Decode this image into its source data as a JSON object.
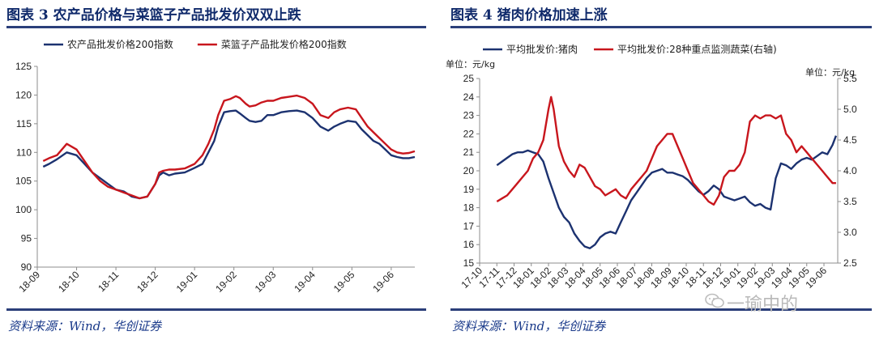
{
  "left": {
    "title": "图表 3   农产品价格与菜篮子产品批发价双双止跌",
    "source": "资料来源：Wind，华创证券"
  },
  "right": {
    "title": "图表 4   猪肉价格加速上涨",
    "source": "资料来源：Wind，华创证券"
  },
  "watermark": "一瑜中的",
  "colors": {
    "navy": "#1c3270",
    "red": "#c8161d",
    "axis": "#8c8c8c",
    "rule": "#2b3f7a"
  },
  "chart_data": [
    {
      "type": "line",
      "title": "农产品价格与菜篮子产品批发价双双止跌",
      "ylim": [
        90,
        125
      ],
      "yticks": [
        90,
        95,
        100,
        105,
        110,
        115,
        120,
        125
      ],
      "xticks": [
        "18-09",
        "18-10",
        "18-11",
        "18-12",
        "19-01",
        "19-02",
        "19-03",
        "19-04",
        "19-05",
        "19-06"
      ],
      "xrange": [
        0,
        9.6
      ],
      "legend_position": "top",
      "series": [
        {
          "name": "农产品批发价格200指数",
          "color": "#1c3270",
          "x": [
            0.15,
            0.3,
            0.5,
            0.75,
            1.0,
            1.2,
            1.4,
            1.6,
            1.8,
            2.0,
            2.2,
            2.4,
            2.6,
            2.8,
            3.0,
            3.1,
            3.2,
            3.35,
            3.5,
            3.75,
            4.0,
            4.2,
            4.35,
            4.5,
            4.6,
            4.75,
            4.9,
            5.05,
            5.15,
            5.3,
            5.4,
            5.55,
            5.7,
            5.85,
            6.0,
            6.2,
            6.4,
            6.6,
            6.8,
            7.0,
            7.2,
            7.4,
            7.55,
            7.7,
            7.9,
            8.1,
            8.25,
            8.4,
            8.55,
            8.7,
            8.85,
            9.0,
            9.15,
            9.3,
            9.45,
            9.6
          ],
          "y": [
            107.5,
            108.0,
            108.8,
            110.0,
            109.5,
            108.0,
            106.5,
            105.5,
            104.5,
            103.5,
            103.2,
            102.3,
            102.0,
            102.3,
            104.5,
            106.0,
            106.5,
            106.0,
            106.3,
            106.5,
            107.3,
            108.0,
            110.0,
            112.0,
            114.5,
            117.0,
            117.2,
            117.3,
            116.8,
            116.0,
            115.5,
            115.3,
            115.5,
            116.5,
            116.5,
            117.0,
            117.2,
            117.3,
            117.0,
            116.0,
            114.5,
            113.8,
            114.5,
            115.0,
            115.5,
            115.3,
            114.0,
            113.0,
            112.0,
            111.5,
            110.5,
            109.5,
            109.2,
            109.0,
            109.0,
            109.2
          ]
        },
        {
          "name": "菜篮子产品批发价格200指数",
          "color": "#c8161d",
          "x": [
            0.15,
            0.3,
            0.5,
            0.75,
            1.0,
            1.2,
            1.4,
            1.6,
            1.8,
            2.0,
            2.2,
            2.4,
            2.6,
            2.8,
            3.0,
            3.1,
            3.2,
            3.35,
            3.5,
            3.75,
            4.0,
            4.2,
            4.35,
            4.5,
            4.6,
            4.75,
            4.9,
            5.05,
            5.15,
            5.3,
            5.4,
            5.55,
            5.7,
            5.85,
            6.0,
            6.2,
            6.4,
            6.6,
            6.8,
            7.0,
            7.2,
            7.4,
            7.55,
            7.7,
            7.9,
            8.1,
            8.25,
            8.4,
            8.55,
            8.7,
            8.85,
            9.0,
            9.15,
            9.3,
            9.45,
            9.6
          ],
          "y": [
            108.5,
            109.0,
            109.5,
            111.5,
            110.5,
            108.5,
            106.5,
            105.0,
            104.0,
            103.5,
            103.0,
            102.5,
            102.0,
            102.3,
            104.5,
            106.5,
            106.8,
            107.0,
            107.0,
            107.2,
            108.0,
            109.5,
            111.5,
            114.0,
            116.5,
            119.0,
            119.3,
            119.8,
            119.5,
            118.5,
            118.0,
            118.2,
            118.7,
            119.0,
            119.0,
            119.5,
            119.7,
            119.9,
            119.5,
            118.5,
            116.5,
            116.0,
            117.0,
            117.5,
            117.8,
            117.5,
            116.0,
            114.5,
            113.5,
            112.5,
            111.5,
            110.5,
            110.0,
            109.8,
            109.9,
            110.2
          ]
        }
      ]
    },
    {
      "type": "line",
      "title": "猪肉价格加速上涨",
      "ylabel": "单位：元/kg",
      "ylabel_right": "单位：元/kg",
      "ylim": [
        15,
        25
      ],
      "ylim_right": [
        2.5,
        5.5
      ],
      "yticks": [
        15,
        16,
        17,
        18,
        19,
        20,
        21,
        22,
        23,
        24,
        25
      ],
      "yticks_right": [
        "2.5",
        "3.0",
        "3.5",
        "4.0",
        "4.5",
        "5.0",
        "5.5"
      ],
      "xticks": [
        "17-10",
        "17-11",
        "17-12",
        "18-01",
        "18-02",
        "18-03",
        "18-04",
        "18-05",
        "18-06",
        "18-07",
        "18-08",
        "18-09",
        "18-10",
        "18-11",
        "18-12",
        "19-01",
        "19-02",
        "19-03",
        "19-04",
        "19-05",
        "19-06"
      ],
      "xrange": [
        0,
        20.8
      ],
      "legend_position": "top",
      "series": [
        {
          "name": "平均批发价:猪肉",
          "color": "#1c3270",
          "axis": "left",
          "x": [
            1.0,
            1.3,
            1.6,
            1.9,
            2.2,
            2.5,
            2.8,
            3.1,
            3.4,
            3.7,
            4.0,
            4.3,
            4.6,
            4.9,
            5.2,
            5.5,
            5.8,
            6.1,
            6.4,
            6.7,
            7.0,
            7.3,
            7.6,
            7.9,
            8.2,
            8.5,
            8.8,
            9.1,
            9.4,
            9.7,
            10.0,
            10.3,
            10.6,
            10.9,
            11.2,
            11.5,
            11.8,
            12.1,
            12.4,
            12.7,
            13.0,
            13.3,
            13.6,
            13.9,
            14.2,
            14.5,
            14.8,
            15.1,
            15.4,
            15.7,
            16.0,
            16.3,
            16.6,
            16.9,
            17.2,
            17.5,
            17.8,
            18.1,
            18.4,
            18.7,
            19.0,
            19.3,
            19.6,
            19.9,
            20.2,
            20.5,
            20.7
          ],
          "y": [
            20.3,
            20.5,
            20.7,
            20.9,
            21.0,
            21.0,
            21.1,
            21.0,
            20.9,
            20.5,
            19.6,
            18.8,
            18.0,
            17.5,
            17.2,
            16.6,
            16.2,
            15.9,
            15.8,
            16.0,
            16.4,
            16.6,
            16.7,
            16.6,
            17.2,
            17.8,
            18.4,
            18.8,
            19.2,
            19.6,
            19.9,
            20.0,
            20.1,
            19.9,
            19.9,
            19.8,
            19.7,
            19.5,
            19.2,
            18.9,
            18.7,
            18.9,
            19.2,
            19.0,
            18.6,
            18.5,
            18.4,
            18.5,
            18.6,
            18.3,
            18.1,
            18.2,
            18.0,
            17.9,
            19.6,
            20.4,
            20.3,
            20.1,
            20.4,
            20.6,
            20.7,
            20.6,
            20.8,
            21.0,
            20.9,
            21.4,
            21.9
          ]
        },
        {
          "name": "平均批发价:28种重点监测蔬菜(右轴)",
          "color": "#c8161d",
          "axis": "right",
          "x": [
            1.0,
            1.3,
            1.6,
            1.9,
            2.2,
            2.5,
            2.8,
            3.1,
            3.4,
            3.7,
            4.0,
            4.15,
            4.3,
            4.6,
            4.9,
            5.2,
            5.5,
            5.8,
            6.1,
            6.4,
            6.7,
            7.0,
            7.3,
            7.6,
            7.9,
            8.2,
            8.5,
            8.8,
            9.1,
            9.4,
            9.7,
            10.0,
            10.3,
            10.6,
            10.9,
            11.2,
            11.5,
            11.8,
            12.1,
            12.4,
            12.7,
            13.0,
            13.3,
            13.6,
            13.9,
            14.2,
            14.5,
            14.8,
            15.1,
            15.4,
            15.7,
            16.0,
            16.3,
            16.6,
            16.9,
            17.2,
            17.5,
            17.8,
            18.1,
            18.4,
            18.7,
            19.0,
            19.3,
            19.6,
            19.9,
            20.2,
            20.5,
            20.7
          ],
          "y": [
            3.5,
            3.55,
            3.6,
            3.7,
            3.8,
            3.9,
            4.0,
            4.2,
            4.3,
            4.5,
            5.0,
            5.2,
            5.0,
            4.4,
            4.15,
            4.0,
            3.9,
            4.1,
            4.05,
            3.9,
            3.75,
            3.7,
            3.6,
            3.65,
            3.7,
            3.6,
            3.55,
            3.7,
            3.8,
            3.9,
            4.0,
            4.2,
            4.4,
            4.5,
            4.6,
            4.6,
            4.4,
            4.2,
            4.0,
            3.8,
            3.7,
            3.6,
            3.5,
            3.45,
            3.6,
            3.9,
            4.0,
            4.0,
            4.1,
            4.3,
            4.8,
            4.9,
            4.85,
            4.9,
            4.9,
            4.85,
            4.9,
            4.6,
            4.5,
            4.3,
            4.4,
            4.3,
            4.2,
            4.1,
            4.0,
            3.9,
            3.8,
            3.8
          ]
        }
      ]
    }
  ]
}
